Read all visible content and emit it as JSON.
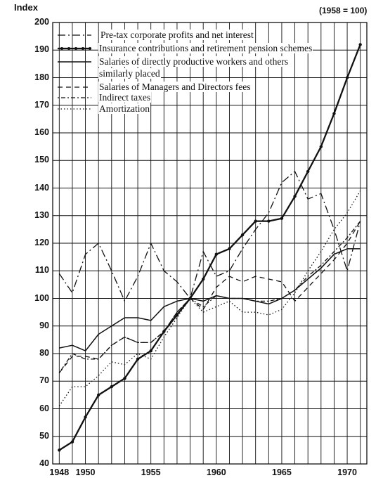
{
  "chart_data": {
    "type": "line",
    "ylabel": "Index",
    "base_note": "(1958 = 100)",
    "ylim": [
      40,
      200
    ],
    "xlim": [
      1947.5,
      1971.5
    ],
    "yticks": [
      40,
      50,
      60,
      70,
      80,
      90,
      100,
      110,
      120,
      130,
      140,
      150,
      160,
      170,
      180,
      190,
      200
    ],
    "xticks": [
      {
        "value": 1948,
        "label": "1948"
      },
      {
        "value": 1950,
        "label": "1950"
      },
      {
        "value": 1955,
        "label": "1955"
      },
      {
        "value": 1960,
        "label": "1960"
      },
      {
        "value": 1965,
        "label": "1965"
      },
      {
        "value": 1970,
        "label": "1970"
      }
    ],
    "grid": true,
    "legend_position": "top-left",
    "series": [
      {
        "name": "Pre-tax corporate profits and net interest",
        "style": "dashdot",
        "x": [
          1948,
          1949,
          1950,
          1951,
          1952,
          1953,
          1954,
          1955,
          1956,
          1957,
          1958,
          1959,
          1960,
          1961,
          1962,
          1963,
          1964,
          1965,
          1966,
          1967,
          1968,
          1969,
          1970,
          1971
        ],
        "y": [
          109,
          102,
          116,
          120,
          110,
          99,
          108,
          120,
          110,
          106,
          100,
          117,
          108,
          110,
          118,
          125,
          131,
          142,
          146,
          136,
          138,
          125,
          110,
          128
        ]
      },
      {
        "name": "Insurance contributions and retirement pension schemes",
        "style": "bold-dotted",
        "x": [
          1948,
          1949,
          1950,
          1951,
          1952,
          1953,
          1954,
          1955,
          1956,
          1957,
          1958,
          1959,
          1960,
          1961,
          1962,
          1963,
          1964,
          1965,
          1966,
          1967,
          1968,
          1969,
          1970,
          1971
        ],
        "y": [
          45,
          48,
          57,
          65,
          68,
          71,
          78,
          81,
          88,
          94,
          100,
          107,
          116,
          118,
          123,
          128,
          128,
          129,
          137,
          146,
          155,
          167,
          180,
          192
        ]
      },
      {
        "name": "Salaries of directly productive workers and others similarly placed",
        "style": "solid",
        "x": [
          1948,
          1949,
          1950,
          1951,
          1952,
          1953,
          1954,
          1955,
          1956,
          1957,
          1958,
          1959,
          1960,
          1961,
          1962,
          1963,
          1964,
          1965,
          1966,
          1967,
          1968,
          1969,
          1970,
          1971
        ],
        "y": [
          82,
          83,
          81,
          87,
          90,
          93,
          93,
          92,
          97,
          99,
          100,
          99,
          101,
          100,
          100,
          99,
          98,
          100,
          103,
          107,
          111,
          116,
          118,
          118
        ]
      },
      {
        "name": "Salaries of Managers and Directors fees",
        "style": "dashed",
        "x": [
          1948,
          1949,
          1950,
          1951,
          1952,
          1953,
          1954,
          1955,
          1956,
          1957,
          1958,
          1959,
          1960,
          1961,
          1962,
          1963,
          1964,
          1965,
          1966,
          1967,
          1968,
          1969,
          1970,
          1971
        ],
        "y": [
          73,
          79,
          79,
          78,
          83,
          86,
          84,
          84,
          88,
          95,
          100,
          96,
          104,
          108,
          106,
          108,
          107,
          106,
          99,
          104,
          109,
          114,
          120,
          128
        ]
      },
      {
        "name": "Indirect taxes",
        "style": "dotdash",
        "x": [
          1948,
          1949,
          1950,
          1951,
          1952,
          1953,
          1954,
          1955,
          1956,
          1957,
          1958,
          1959,
          1960,
          1961,
          1962,
          1963,
          1964,
          1965,
          1966,
          1967,
          1968,
          1969,
          1970,
          1971
        ],
        "y": [
          73,
          80,
          78,
          78,
          83,
          86,
          84,
          84,
          88,
          95,
          100,
          97,
          101,
          100,
          100,
          99,
          99,
          100,
          103,
          108,
          112,
          117,
          122,
          128
        ]
      },
      {
        "name": "Amortization",
        "style": "dotted",
        "x": [
          1948,
          1949,
          1950,
          1951,
          1952,
          1953,
          1954,
          1955,
          1956,
          1957,
          1958,
          1959,
          1960,
          1961,
          1962,
          1963,
          1964,
          1965,
          1966,
          1967,
          1968,
          1969,
          1970,
          1971
        ],
        "y": [
          61,
          68,
          68,
          72,
          77,
          76,
          80,
          78,
          86,
          93,
          100,
          95,
          97,
          99,
          95,
          95,
          94,
          96,
          102,
          110,
          117,
          125,
          131,
          139
        ]
      }
    ]
  }
}
